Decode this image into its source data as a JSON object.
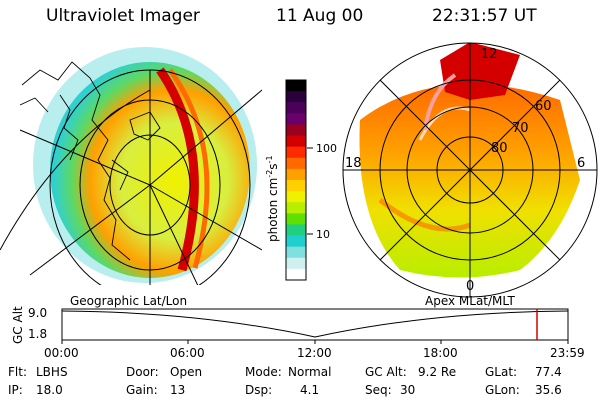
{
  "header": {
    "instrument": "Ultraviolet Imager",
    "date": "11 Aug 00",
    "time": "22:31:57 UT"
  },
  "colorbar": {
    "unit": "photon cm",
    "unit_exp1": "-2",
    "unit_s": "s",
    "unit_exp2": "-1",
    "tick_100": "100",
    "tick_10": "10",
    "colors": [
      "#000000",
      "#2b003a",
      "#4b005a",
      "#6a006a",
      "#9a0020",
      "#d40000",
      "#ff2a00",
      "#ff6a00",
      "#ffa000",
      "#ffd000",
      "#f0f000",
      "#b8ee00",
      "#60e000",
      "#20d080",
      "#20d0d0",
      "#80e0e0",
      "#d0f0f0",
      "#ffffff"
    ]
  },
  "panels": {
    "left_label": "Geographic Lat/Lon",
    "right_label": "Apex MLat/MLT"
  },
  "polar_labels": {
    "top": "12",
    "bottom": "0",
    "left": "18",
    "right": "6",
    "lat60": "60",
    "lat70": "70",
    "lat80": "80"
  },
  "orbit": {
    "axis_title": "GC Alt",
    "y_top": "9.0",
    "y_bottom": "1.8",
    "x_ticks": [
      "00:00",
      "06:00",
      "12:00",
      "18:00",
      "23:59"
    ],
    "marker_time_hours": 22.53
  },
  "info": {
    "flt_label": "Flt:",
    "flt_value": "LBHS",
    "ip_label": "IP:",
    "ip_value": "18.0",
    "door_label": "Door:",
    "door_value": "Open",
    "gain_label": "Gain:",
    "gain_value": "13",
    "mode_label": "Mode:",
    "mode_value": "Normal",
    "dsp_label": "Dsp:",
    "dsp_value": "4.1",
    "gcalt_label": "GC Alt:",
    "gcalt_value": "9.2 Re",
    "seq_label": "Seq:",
    "seq_value": "30",
    "glat_label": "GLat:",
    "glat_value": "77.4",
    "glon_label": "GLon:",
    "glon_value": "35.6"
  }
}
